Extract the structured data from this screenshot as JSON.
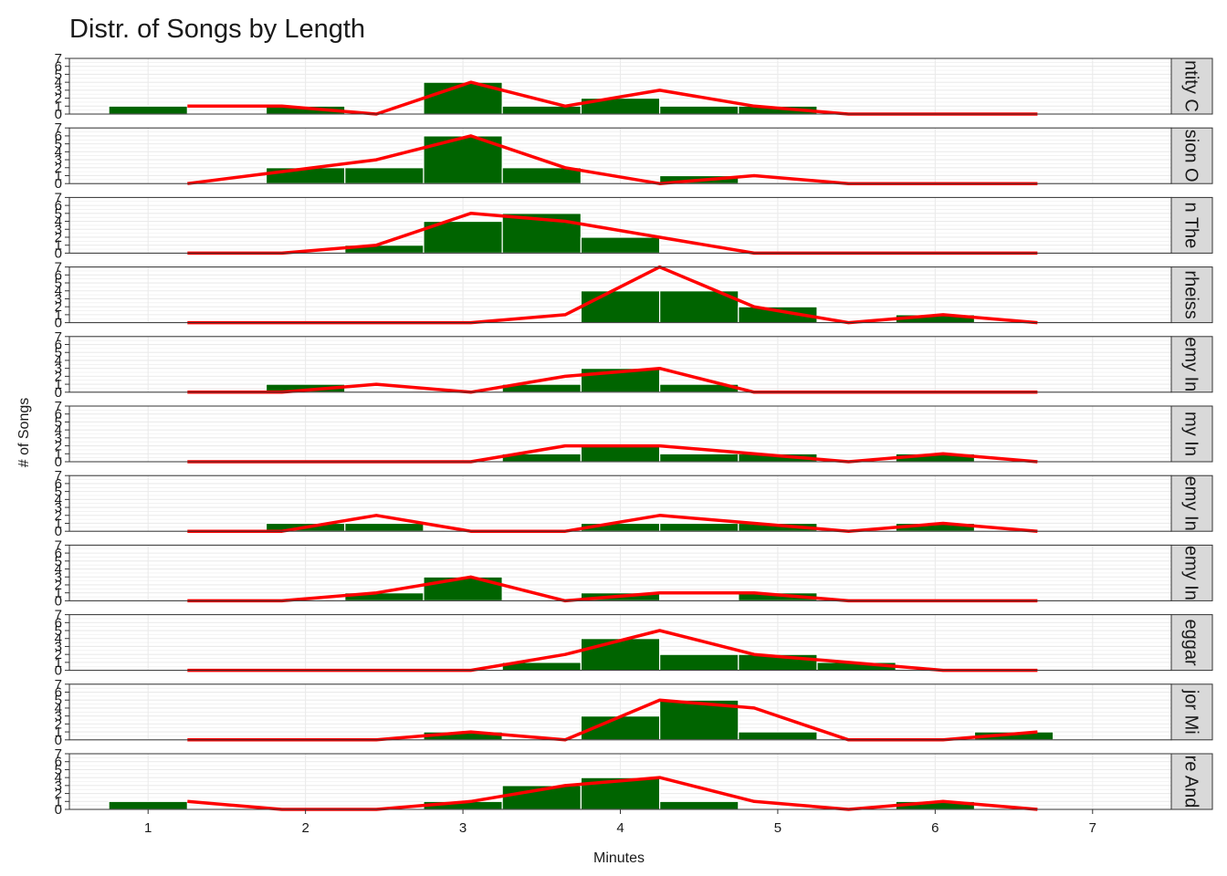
{
  "chart_data": {
    "type": "bar",
    "title": "Distr. of Songs by Length",
    "xlabel": "Minutes",
    "ylabel": "# of Songs",
    "xlim": [
      0.5,
      7.5
    ],
    "ylim": [
      0,
      7
    ],
    "x_ticks": [
      1,
      2,
      3,
      4,
      5,
      6,
      7
    ],
    "y_ticks": [
      0,
      1,
      2,
      3,
      4,
      5,
      6,
      7
    ],
    "bin_width": 0.5,
    "bar_centers": [
      1,
      1.5,
      2,
      2.5,
      3,
      3.5,
      4,
      4.5,
      5,
      5.5,
      6,
      6.5
    ],
    "line_x": [
      1.25,
      1.85,
      2.45,
      3.05,
      3.65,
      4.25,
      4.85,
      5.45,
      6.05,
      6.65
    ],
    "colors": {
      "bars": "#006400",
      "line": "#ff0000",
      "strip": "#d9d9d9",
      "grid": "#ebebeb"
    },
    "grid": true,
    "legend": "none",
    "panels": [
      {
        "strip_label": "ntity C",
        "bars": [
          1,
          0,
          1,
          0,
          4,
          1,
          2,
          1,
          1,
          0,
          0,
          0
        ],
        "line": [
          1,
          1,
          0,
          4,
          1,
          3,
          1,
          0,
          0,
          0
        ]
      },
      {
        "strip_label": "sion O",
        "bars": [
          0,
          0,
          2,
          2,
          6,
          2,
          0,
          1,
          0,
          0,
          0,
          0
        ],
        "line": [
          0,
          1.5,
          3,
          6,
          2,
          0,
          1,
          0,
          0,
          0
        ]
      },
      {
        "strip_label": "n The",
        "bars": [
          0,
          0,
          0,
          1,
          4,
          5,
          2,
          0,
          0,
          0,
          0,
          0
        ],
        "line": [
          0,
          0,
          1,
          5,
          4,
          2,
          0,
          0,
          0,
          0
        ]
      },
      {
        "strip_label": "rheiss",
        "bars": [
          0,
          0,
          0,
          0,
          0,
          0,
          4,
          4,
          2,
          0,
          1,
          0
        ],
        "line": [
          0,
          0,
          0,
          0,
          1,
          7,
          2,
          0,
          1,
          0
        ]
      },
      {
        "strip_label": "emy In",
        "bars": [
          0,
          0,
          1,
          0,
          0,
          1,
          3,
          1,
          0,
          0,
          0,
          0
        ],
        "line": [
          0,
          0,
          1,
          0,
          2,
          3,
          0,
          0,
          0,
          0
        ]
      },
      {
        "strip_label": "my In",
        "bars": [
          0,
          0,
          0,
          0,
          0,
          1,
          2,
          1,
          1,
          0,
          1,
          0
        ],
        "line": [
          0,
          0,
          0,
          0,
          2,
          2,
          1,
          0,
          1,
          0
        ]
      },
      {
        "strip_label": "emy In",
        "bars": [
          0,
          0,
          1,
          1,
          0,
          0,
          1,
          1,
          1,
          0,
          1,
          0
        ],
        "line": [
          0,
          0,
          2,
          0,
          0,
          2,
          1,
          0,
          1,
          0
        ]
      },
      {
        "strip_label": "emy In",
        "bars": [
          0,
          0,
          0,
          1,
          3,
          0,
          1,
          0,
          1,
          0,
          0,
          0
        ],
        "line": [
          0,
          0,
          1,
          3,
          0,
          1,
          1,
          0,
          0,
          0
        ]
      },
      {
        "strip_label": "eggar",
        "bars": [
          0,
          0,
          0,
          0,
          0,
          1,
          4,
          2,
          2,
          1,
          0,
          0
        ],
        "line": [
          0,
          0,
          0,
          0,
          2,
          5,
          2,
          1,
          0,
          0
        ]
      },
      {
        "strip_label": "jor Mi",
        "bars": [
          0,
          0,
          0,
          0,
          1,
          0,
          3,
          5,
          1,
          0,
          0,
          1
        ],
        "line": [
          0,
          0,
          0,
          1,
          0,
          5,
          4,
          0,
          0,
          1
        ]
      },
      {
        "strip_label": "re And",
        "bars": [
          1,
          0,
          0,
          0,
          1,
          3,
          4,
          1,
          0,
          0,
          1,
          0
        ],
        "line": [
          1,
          0,
          0,
          1,
          3,
          4,
          1,
          0,
          1,
          0
        ]
      }
    ]
  }
}
